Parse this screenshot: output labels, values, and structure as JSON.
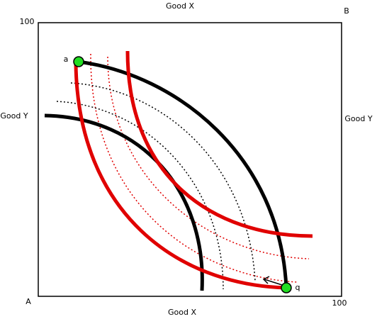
{
  "labels": {
    "top_axis": "Good X",
    "corner_b": "B",
    "top_left_max": "100",
    "left_axis": "Good Y",
    "right_axis": "Good Y",
    "point_a": "a",
    "point_q": "q",
    "corner_a": "A",
    "bottom_axis": "Good X",
    "bottom_right_max": "100"
  }
}
